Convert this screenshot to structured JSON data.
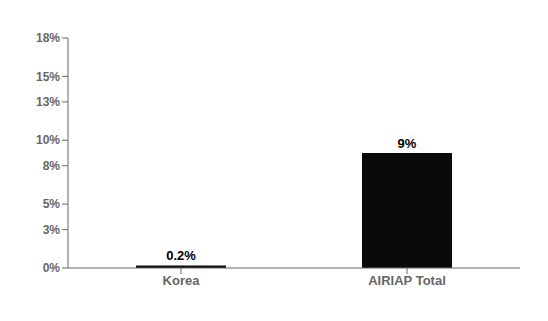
{
  "chart_data": {
    "type": "bar",
    "categories": [
      "Korea",
      "AIRIAP Total"
    ],
    "values": [
      0.2,
      9.0
    ],
    "value_labels": [
      "0.2%",
      "9%"
    ],
    "data_labels": true,
    "color": "#0a0a0a",
    "ylim": [
      0,
      18
    ],
    "yticks": [
      {
        "value": 0,
        "label": "0%"
      },
      {
        "value": 3,
        "label": "3%"
      },
      {
        "value": 5,
        "label": "5%"
      },
      {
        "value": 8,
        "label": "8%"
      },
      {
        "value": 10,
        "label": "10%"
      },
      {
        "value": 13,
        "label": "13%"
      },
      {
        "value": 15,
        "label": "15%"
      },
      {
        "value": 18,
        "label": "18%"
      }
    ],
    "grid": false
  }
}
